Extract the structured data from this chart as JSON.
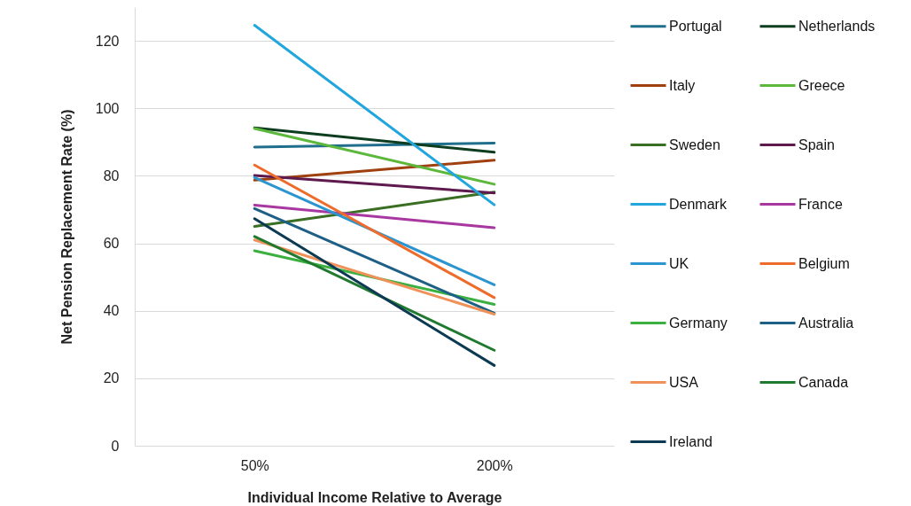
{
  "chart_data": {
    "type": "line",
    "xlabel": "Individual Income Relative to Average",
    "ylabel": "Net Pension Replacement Rate (%)",
    "categories": [
      "50%",
      "200%"
    ],
    "ylim": [
      0,
      130
    ],
    "yticks": [
      0,
      20,
      40,
      60,
      80,
      100,
      120
    ],
    "grid": "y",
    "legend": "right",
    "series": [
      {
        "name": "Portugal",
        "color": "#1f6e8c",
        "values": [
          88.5,
          89.7
        ]
      },
      {
        "name": "Netherlands",
        "color": "#0d3d1f",
        "values": [
          94.2,
          87
        ]
      },
      {
        "name": "Italy",
        "color": "#a0400e",
        "values": [
          78.7,
          84.6
        ]
      },
      {
        "name": "Greece",
        "color": "#5cb83a",
        "values": [
          94,
          77.5
        ]
      },
      {
        "name": "Sweden",
        "color": "#3a6e23",
        "values": [
          65,
          75.2
        ]
      },
      {
        "name": "Spain",
        "color": "#5e1a4e",
        "values": [
          80.1,
          74.9
        ]
      },
      {
        "name": "Denmark",
        "color": "#22a6dd",
        "values": [
          124.6,
          71.4
        ]
      },
      {
        "name": "France",
        "color": "#a838a0",
        "values": [
          71.3,
          64.6
        ]
      },
      {
        "name": "UK",
        "color": "#2b95d0",
        "values": [
          79.5,
          47.7
        ]
      },
      {
        "name": "Belgium",
        "color": "#ee6c2b",
        "values": [
          83.2,
          43.9
        ]
      },
      {
        "name": "Germany",
        "color": "#3bb040",
        "values": [
          57.8,
          41.9
        ]
      },
      {
        "name": "Australia",
        "color": "#1e5f85",
        "values": [
          70.3,
          39.3
        ]
      },
      {
        "name": "USA",
        "color": "#f0915a",
        "values": [
          61,
          39
        ]
      },
      {
        "name": "Canada",
        "color": "#1f7a30",
        "values": [
          62,
          28.3
        ]
      },
      {
        "name": "Ireland",
        "color": "#0b3a52",
        "values": [
          67.3,
          23.8
        ]
      }
    ]
  }
}
